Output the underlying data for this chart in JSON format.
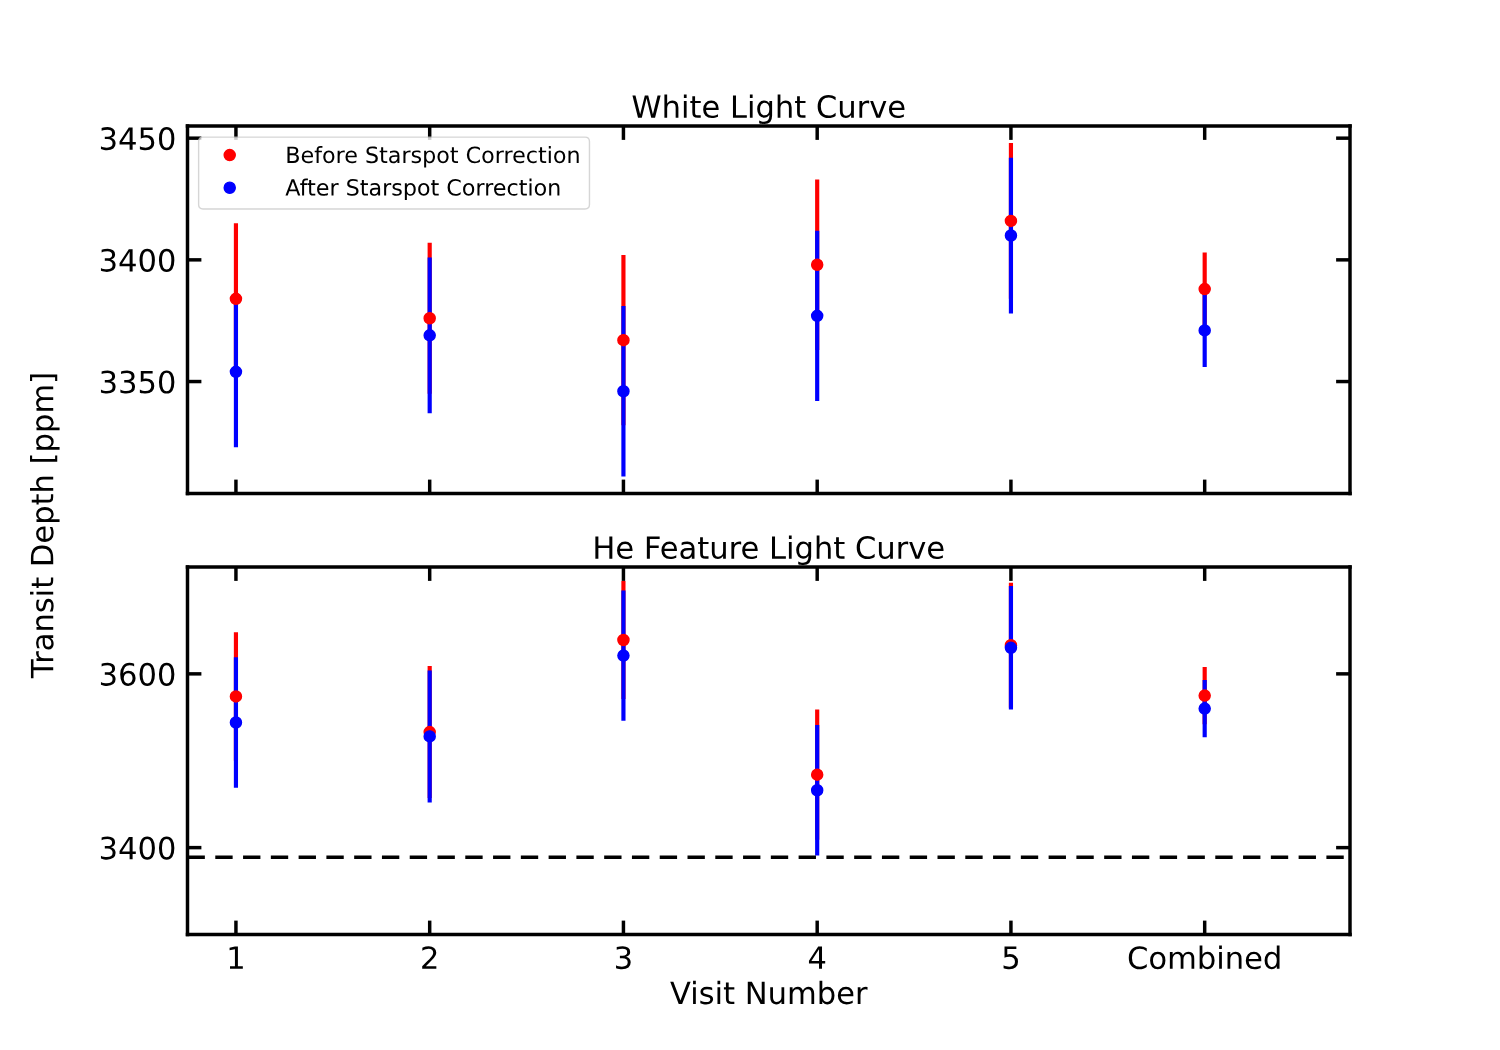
{
  "chart_data": [
    {
      "type": "scatter",
      "title": "White Light Curve",
      "ylabel": "Transit Depth [ppm]",
      "categories": [
        null,
        null,
        null,
        null,
        null,
        null
      ],
      "ylim": [
        3304,
        3455
      ],
      "yticks": [
        3350,
        3400,
        3450
      ],
      "tick_labels": "y",
      "marker": "circle",
      "legend": "top left",
      "grid": false,
      "series": [
        {
          "name": "Before Starspot Correction",
          "color": "#ff0000",
          "values": [
            3384,
            3376,
            3367,
            3398,
            3416,
            3388
          ],
          "errors": [
            31,
            31,
            35,
            35,
            32,
            15
          ]
        },
        {
          "name": "After Starspot Correction",
          "color": "#0000ff",
          "values": [
            3354,
            3369,
            3346,
            3377,
            3410,
            3371
          ],
          "errors": [
            31,
            32,
            35,
            35,
            32,
            15
          ]
        }
      ]
    },
    {
      "type": "scatter",
      "title": "He Feature Light Curve",
      "xlabel": "Visit Number",
      "categories": [
        "1",
        "2",
        "3",
        "4",
        "5",
        "Combined"
      ],
      "ylim": [
        3300,
        3723
      ],
      "yticks": [
        3400,
        3600
      ],
      "marker": "circle",
      "grid": false,
      "ref_lines": [
        {
          "axis": "y",
          "value": 3389,
          "color": "#000000",
          "line_style": "dashed"
        }
      ],
      "series": [
        {
          "color": "#ff0000",
          "values": [
            3574,
            3533,
            3639,
            3484,
            3633,
            3575
          ],
          "errors": [
            74,
            76,
            68,
            75,
            72,
            33
          ]
        },
        {
          "color": "#0000ff",
          "values": [
            3544,
            3528,
            3621,
            3466,
            3630,
            3560
          ],
          "errors": [
            75,
            76,
            75,
            75,
            71,
            33
          ]
        }
      ]
    }
  ]
}
